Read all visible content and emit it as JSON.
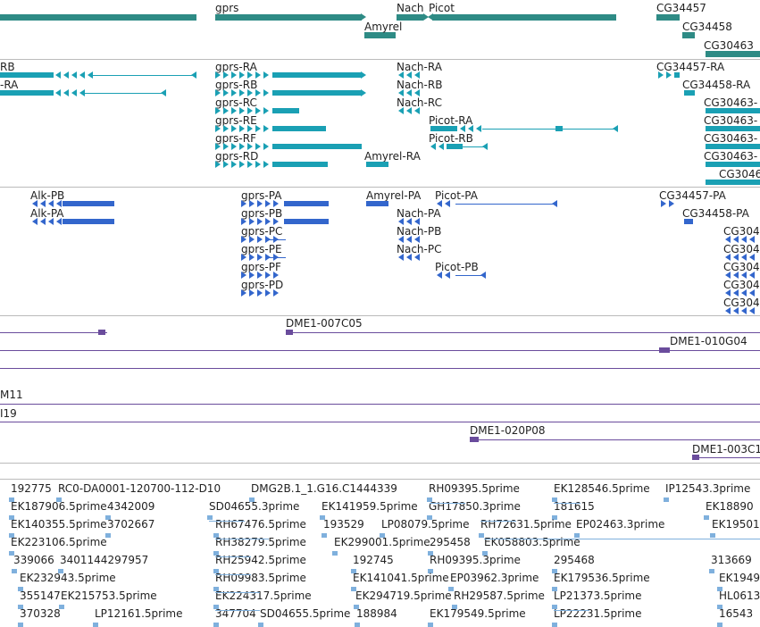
{
  "colors": {
    "gene": "#2e8b85",
    "transcript": "#1aa0b4",
    "protein": "#3366cc",
    "clone": "#6a4c9c",
    "est": "#7fb0dd",
    "separator": "#bbbbbb"
  },
  "tracks": {
    "genes": [
      "gprs",
      "Nach",
      "Picot",
      "Amyrel",
      "CG34457",
      "CG34458",
      "CG30463"
    ],
    "transcripts": [
      "RB",
      "-RA",
      "gprs-RA",
      "gprs-RB",
      "gprs-RC",
      "gprs-RE",
      "gprs-RF",
      "gprs-RD",
      "Nach-RA",
      "Nach-RB",
      "Nach-RC",
      "Picot-RA",
      "Picot-RB",
      "Amyrel-RA",
      "CG34457-RA",
      "CG34458-RA",
      "CG30463-",
      "CG30463-",
      "CG30463-",
      "CG30463-",
      "CG3046"
    ],
    "proteins": [
      "Alk-PB",
      "Alk-PA",
      "gprs-PA",
      "gprs-PB",
      "gprs-PC",
      "gprs-PE",
      "gprs-PF",
      "gprs-PD",
      "Amyrel-PA",
      "Picot-PA",
      "Nach-PA",
      "Nach-PB",
      "Nach-PC",
      "Picot-PB",
      "CG34457-PA",
      "CG34458-PA",
      "CG304",
      "CG304",
      "CG304",
      "CG304",
      "CG304"
    ],
    "clones": [
      "DME1-007C05",
      "DME1-010G04",
      "M11",
      "I19",
      "DME1-020P08",
      "DME1-003C1"
    ],
    "ests": [
      "192775",
      "RC0-DA0001-120700-112-D10",
      "DMG2B.1_1.G16.C1444339",
      "RH09395.5prime",
      "EK128546.5prime",
      "IP12543.3prime",
      "EK187906.5prime",
      "4342009",
      "SD04655.3prime",
      "EK141959.5prime",
      "GH17850.3prime",
      "181615",
      "EK18890",
      "EK140355.5prime",
      "3702667",
      "RH67476.5prime",
      "193529",
      "LP08079.5prime",
      "RH72631.5prime",
      "EP02463.3prime",
      "EK19501",
      "EK223106.5prime",
      "RH38279.5prime",
      "EK299001.5prime",
      "295458",
      "EK058803.5prime",
      "339066",
      "3401144297957",
      "RH25942.5prime",
      "192745",
      "RH09395.3prime",
      "295468",
      "313669",
      "EK232943.5prime",
      "RH09983.5prime",
      "EK141041.5prime",
      "EP03962.3prime",
      "EK179536.5prime",
      "EK1949",
      "355147",
      "EK215753.5prime",
      "EK224317.5prime",
      "EK294719.5prime",
      "RH29587.5prime",
      "LP21373.5prime",
      "HL0613",
      "370328",
      "LP12161.5prime",
      "347704",
      "SD04655.5prime",
      "188984",
      "EK179549.5prime",
      "LP22231.5prime",
      "16543"
    ]
  }
}
